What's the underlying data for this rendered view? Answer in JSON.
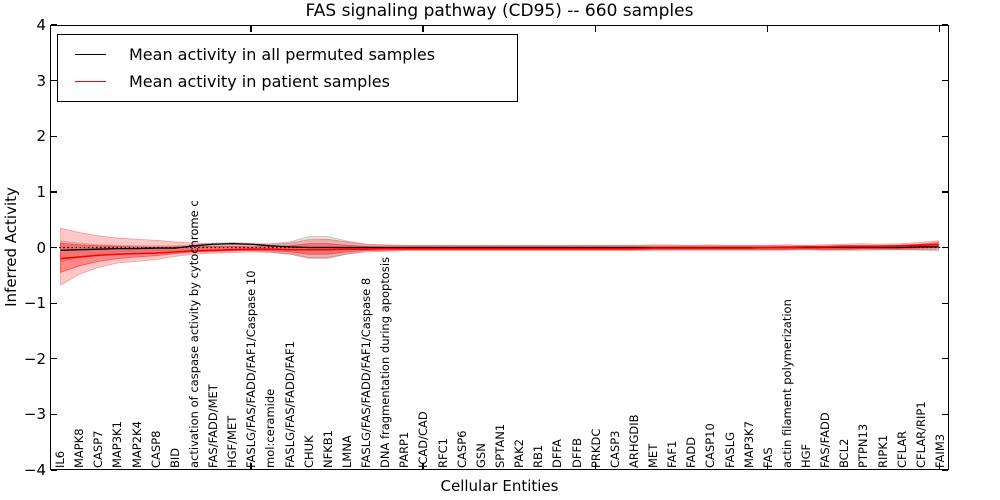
{
  "chart_data": {
    "type": "line",
    "title": "FAS signaling pathway (CD95) -- 660 samples",
    "xlabel": "Cellular Entities",
    "ylabel": "Inferred Activity",
    "ylim": [
      -4,
      4
    ],
    "yticks": [
      4,
      3,
      2,
      1,
      0,
      -1,
      -2,
      -3,
      -4
    ],
    "ytick_labels": [
      "4",
      "3",
      "2",
      "1",
      "0",
      "−1",
      "−2",
      "−3",
      "−4"
    ],
    "xtick_indices": [
      10,
      19,
      28,
      37,
      46
    ],
    "grid": false,
    "legend_position": "upper left",
    "zero_line": 0,
    "categories": [
      "IL6",
      "MAPK8",
      "CASP7",
      "MAP3K1",
      "MAP2K4",
      "CASP8",
      "BID",
      "activation of caspase activity by cytochrome c",
      "FAS/FADD/MET",
      "HGF/MET",
      "FASLG/FAS/FADD/FAF1/Caspase 10",
      "mol:ceramide",
      "FASLG/FAS/FADD/FAF1",
      "CHUK",
      "NFKB1",
      "LMNA",
      "FASLG/FAS/FADD/FAF1/Caspase 8",
      "DNA fragmentation during apoptosis",
      "PARP1",
      "ICAD/CAD",
      "RFC1",
      "CASP6",
      "GSN",
      "SPTAN1",
      "PAK2",
      "RB1",
      "DFFA",
      "DFFB",
      "PRKDC",
      "CASP3",
      "ARHGDIB",
      "MET",
      "FAF1",
      "FADD",
      "CASP10",
      "FASLG",
      "MAP3K7",
      "FAS",
      "actin filament polymerization",
      "HGF",
      "FAS/FADD",
      "BCL2",
      "PTPN13",
      "RIPK1",
      "CFLAR",
      "CFLAR/RIP1",
      "FAIM3"
    ],
    "series": [
      {
        "name": "Mean activity in all permuted samples",
        "color": "#000000",
        "values": [
          -0.05,
          -0.04,
          -0.03,
          -0.02,
          -0.02,
          -0.01,
          -0.01,
          0.03,
          0.06,
          0.07,
          0.06,
          0.03,
          0.01,
          0,
          0,
          0,
          0,
          0,
          0,
          0,
          0,
          0,
          0,
          0,
          0,
          0,
          0,
          0,
          0,
          0,
          0,
          0,
          0,
          0,
          0,
          0,
          0,
          0,
          0,
          0,
          0,
          0,
          0,
          0,
          0,
          0.01,
          0.01
        ]
      },
      {
        "name": "Mean activity in patient samples",
        "color": "#ff0000",
        "values": [
          -0.2,
          -0.17,
          -0.14,
          -0.12,
          -0.11,
          -0.1,
          -0.08,
          -0.06,
          -0.05,
          -0.04,
          -0.03,
          -0.03,
          -0.04,
          -0.04,
          -0.04,
          -0.03,
          -0.03,
          -0.02,
          -0.02,
          -0.02,
          -0.02,
          -0.02,
          -0.02,
          -0.02,
          -0.02,
          -0.02,
          -0.02,
          -0.02,
          -0.02,
          -0.02,
          -0.02,
          -0.01,
          -0.01,
          -0.01,
          -0.01,
          -0.01,
          -0.01,
          0,
          0,
          0.01,
          0.01,
          0.02,
          0.02,
          0.02,
          0.03,
          0.04,
          0.05
        ]
      }
    ],
    "bands": [
      {
        "name": "permuted samples spread",
        "color": "#000000",
        "opacity": 0.12,
        "upper": [
          0.12,
          0.08,
          0.05,
          0.04,
          0.03,
          0.03,
          0.03,
          0.05,
          0.08,
          0.09,
          0.08,
          0.07,
          0.1,
          0.2,
          0.2,
          0.12,
          0.06,
          0.04,
          0.03,
          0.03,
          0.03,
          0.03,
          0.03,
          0.03,
          0.03,
          0.03,
          0.03,
          0.03,
          0.03,
          0.03,
          0.03,
          0.03,
          0.03,
          0.03,
          0.03,
          0.03,
          0.03,
          0.03,
          0.03,
          0.03,
          0.03,
          0.04,
          0.04,
          0.04,
          0.04,
          0.06,
          0.1
        ],
        "lower": [
          -0.25,
          -0.18,
          -0.12,
          -0.08,
          -0.07,
          -0.06,
          -0.05,
          -0.05,
          -0.05,
          -0.05,
          -0.06,
          -0.08,
          -0.12,
          -0.2,
          -0.2,
          -0.12,
          -0.06,
          -0.05,
          -0.04,
          -0.04,
          -0.04,
          -0.04,
          -0.04,
          -0.04,
          -0.04,
          -0.04,
          -0.04,
          -0.04,
          -0.04,
          -0.04,
          -0.04,
          -0.04,
          -0.04,
          -0.04,
          -0.04,
          -0.04,
          -0.04,
          -0.04,
          -0.04,
          -0.04,
          -0.04,
          -0.04,
          -0.04,
          -0.04,
          -0.04,
          -0.05,
          -0.06
        ]
      },
      {
        "name": "patient samples spread (outer)",
        "color": "#ff0000",
        "opacity": 0.22,
        "upper": [
          0.35,
          0.27,
          0.21,
          0.17,
          0.15,
          0.13,
          0.1,
          0.08,
          0.07,
          0.06,
          0.05,
          0.06,
          0.08,
          0.14,
          0.15,
          0.1,
          0.06,
          0.05,
          0.04,
          0.04,
          0.04,
          0.04,
          0.04,
          0.04,
          0.04,
          0.04,
          0.04,
          0.04,
          0.04,
          0.04,
          0.04,
          0.05,
          0.05,
          0.04,
          0.05,
          0.04,
          0.04,
          0.04,
          0.05,
          0.04,
          0.05,
          0.06,
          0.07,
          0.06,
          0.07,
          0.09,
          0.12
        ],
        "lower": [
          -0.68,
          -0.48,
          -0.36,
          -0.28,
          -0.25,
          -0.22,
          -0.16,
          -0.12,
          -0.1,
          -0.09,
          -0.08,
          -0.09,
          -0.12,
          -0.18,
          -0.18,
          -0.12,
          -0.08,
          -0.07,
          -0.06,
          -0.06,
          -0.06,
          -0.06,
          -0.06,
          -0.06,
          -0.06,
          -0.06,
          -0.06,
          -0.06,
          -0.06,
          -0.06,
          -0.06,
          -0.05,
          -0.05,
          -0.05,
          -0.05,
          -0.05,
          -0.05,
          -0.05,
          -0.05,
          -0.04,
          -0.05,
          -0.05,
          -0.05,
          -0.04,
          -0.04,
          -0.04,
          -0.03
        ]
      },
      {
        "name": "patient samples spread (inner)",
        "color": "#ff0000",
        "opacity": 0.32,
        "upper": [
          0.08,
          0.05,
          0.03,
          0.02,
          0.01,
          0,
          0.01,
          0.02,
          0.02,
          0.02,
          0.01,
          0.02,
          0.03,
          0.07,
          0.07,
          0.04,
          0.02,
          0.01,
          0.01,
          0.01,
          0.01,
          0.01,
          0.01,
          0.01,
          0.01,
          0.01,
          0.01,
          0.01,
          0.01,
          0.01,
          0.01,
          0.01,
          0.01,
          0.01,
          0.01,
          0.01,
          0.01,
          0.01,
          0.02,
          0.02,
          0.02,
          0.03,
          0.03,
          0.03,
          0.04,
          0.06,
          0.08
        ],
        "lower": [
          -0.45,
          -0.33,
          -0.25,
          -0.2,
          -0.17,
          -0.15,
          -0.11,
          -0.08,
          -0.07,
          -0.06,
          -0.05,
          -0.06,
          -0.08,
          -0.12,
          -0.12,
          -0.08,
          -0.05,
          -0.05,
          -0.04,
          -0.04,
          -0.04,
          -0.04,
          -0.04,
          -0.04,
          -0.04,
          -0.04,
          -0.04,
          -0.04,
          -0.04,
          -0.04,
          -0.04,
          -0.03,
          -0.03,
          -0.03,
          -0.03,
          -0.03,
          -0.03,
          -0.03,
          -0.03,
          -0.02,
          -0.03,
          -0.03,
          -0.02,
          -0.02,
          -0.02,
          -0.01,
          0
        ]
      }
    ]
  }
}
